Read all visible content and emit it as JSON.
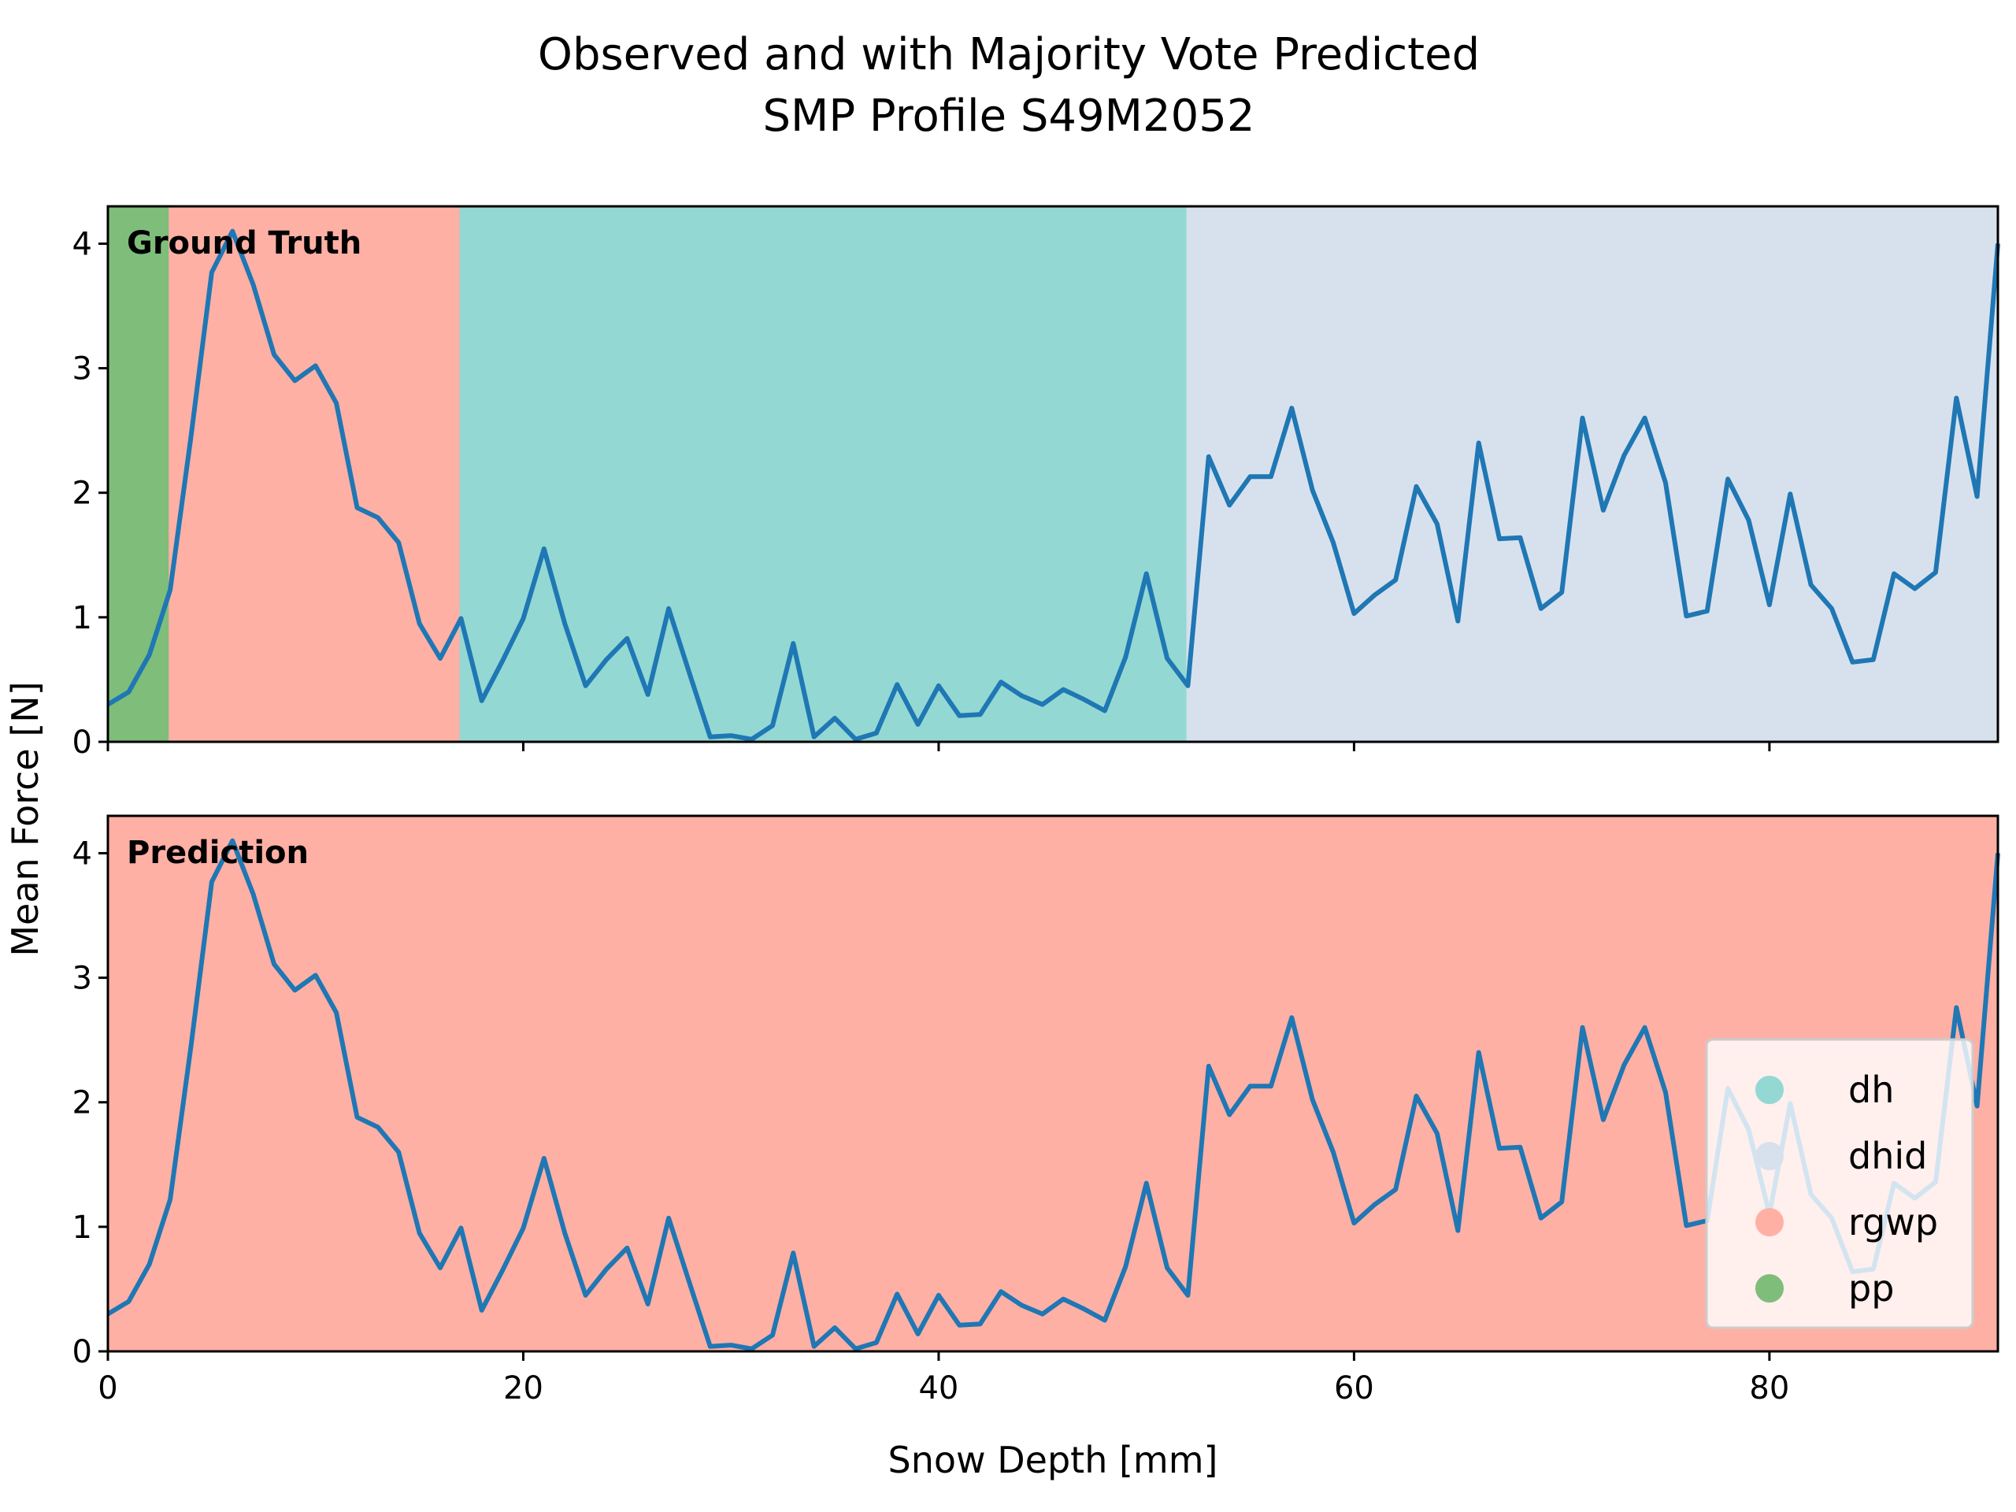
{
  "figure": {
    "title_line1": "Observed and with Majority Vote Predicted",
    "title_line2": "SMP Profile S49M2052"
  },
  "chart_data": {
    "type": "line",
    "xlabel": "Snow Depth [mm]",
    "ylabel": "Mean Force [N]",
    "xlim": [
      0,
      91
    ],
    "ylim": [
      0,
      4.3
    ],
    "xticks": [
      0,
      20,
      40,
      60,
      80
    ],
    "yticks": [
      0,
      1,
      2,
      3,
      4
    ],
    "grid": false,
    "legend_position": "lower-right",
    "legend": [
      {
        "label": "dh",
        "color": "#93d8d3"
      },
      {
        "label": "dhid",
        "color": "#d7e1ed"
      },
      {
        "label": "rgwp",
        "color": "#ffb0a5"
      },
      {
        "label": "pp",
        "color": "#7fbd7a"
      }
    ],
    "series": [
      {
        "color": "#1f77b4",
        "x": [
          0,
          1,
          2,
          3,
          4,
          5,
          6,
          7,
          8,
          9,
          10,
          11,
          12,
          13,
          14,
          15,
          16,
          17,
          18,
          19,
          20,
          21,
          22,
          23,
          24,
          25,
          26,
          27,
          28,
          29,
          30,
          31,
          32,
          33,
          34,
          35,
          36,
          37,
          38,
          39,
          40,
          41,
          42,
          43,
          44,
          45,
          46,
          47,
          48,
          49,
          50,
          51,
          52,
          53,
          54,
          55,
          56,
          57,
          58,
          59,
          60,
          61,
          62,
          63,
          64,
          65,
          66,
          67,
          68,
          69,
          70,
          71,
          72,
          73,
          74,
          75,
          76,
          77,
          78,
          79,
          80,
          81,
          82,
          83,
          84,
          85,
          86,
          87,
          88,
          89,
          90,
          91
        ],
        "y": [
          0.3,
          0.4,
          0.7,
          1.22,
          2.45,
          3.77,
          4.1,
          3.67,
          3.11,
          2.9,
          3.02,
          2.72,
          1.88,
          1.8,
          1.6,
          0.95,
          0.67,
          0.99,
          0.33,
          0.65,
          0.99,
          1.55,
          0.95,
          0.45,
          0.66,
          0.83,
          0.38,
          1.07,
          0.55,
          0.04,
          0.05,
          0.02,
          0.13,
          0.79,
          0.04,
          0.19,
          0.02,
          0.07,
          0.46,
          0.14,
          0.45,
          0.21,
          0.22,
          0.48,
          0.37,
          0.3,
          0.42,
          0.34,
          0.25,
          0.68,
          1.35,
          0.67,
          0.45,
          2.29,
          1.9,
          2.13,
          2.13,
          2.68,
          2.02,
          1.6,
          1.03,
          1.18,
          1.3,
          2.05,
          1.75,
          0.97,
          2.4,
          1.63,
          1.64,
          1.07,
          1.2,
          2.6,
          1.86,
          2.3,
          2.6,
          2.08,
          1.01,
          1.05,
          2.11,
          1.78,
          1.1,
          1.99,
          1.26,
          1.07,
          0.64,
          0.66,
          1.35,
          1.23,
          1.36,
          2.76,
          1.97,
          4.0
        ]
      }
    ],
    "panels": [
      {
        "label": "Ground Truth",
        "segments": [
          {
            "class": "pp",
            "start": 0,
            "end": 3
          },
          {
            "class": "rgwp",
            "start": 3,
            "end": 17
          },
          {
            "class": "dh",
            "start": 17,
            "end": 52
          },
          {
            "class": "dhid",
            "start": 52,
            "end": 91
          }
        ]
      },
      {
        "label": "Prediction",
        "segments": [
          {
            "class": "rgwp",
            "start": 0,
            "end": 91
          }
        ]
      }
    ]
  }
}
